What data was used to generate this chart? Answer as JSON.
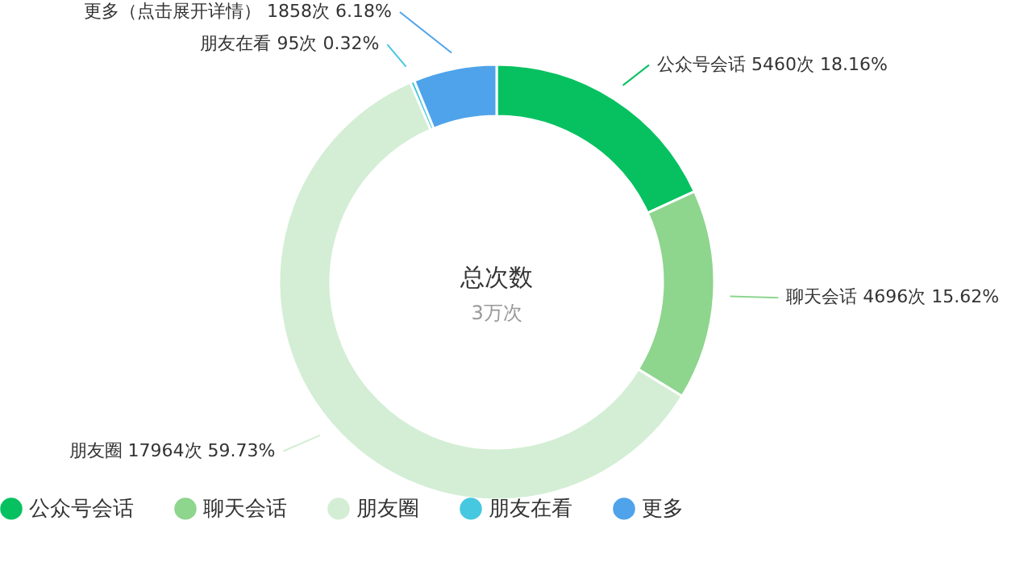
{
  "chart_data": {
    "type": "donut",
    "title": "总次数",
    "subtitle": "3万次",
    "categories": [
      "公众号会话",
      "聊天会话",
      "朋友圈",
      "朋友在看",
      "更多"
    ],
    "values": [
      5460,
      4696,
      17964,
      95,
      1858
    ],
    "colors": [
      "#07c160",
      "#8ed58e",
      "#d3eed4",
      "#46c8e0",
      "#4fa3ea"
    ],
    "value_labels": [
      "公众号会话 5460次 18.16%",
      "聊天会话 4696次 15.62%",
      "朋友圈 17964次 59.73%",
      "朋友在看 95次 0.32%",
      "更多（点击展开详情） 1858次 6.18%"
    ],
    "legend": "bottom"
  }
}
